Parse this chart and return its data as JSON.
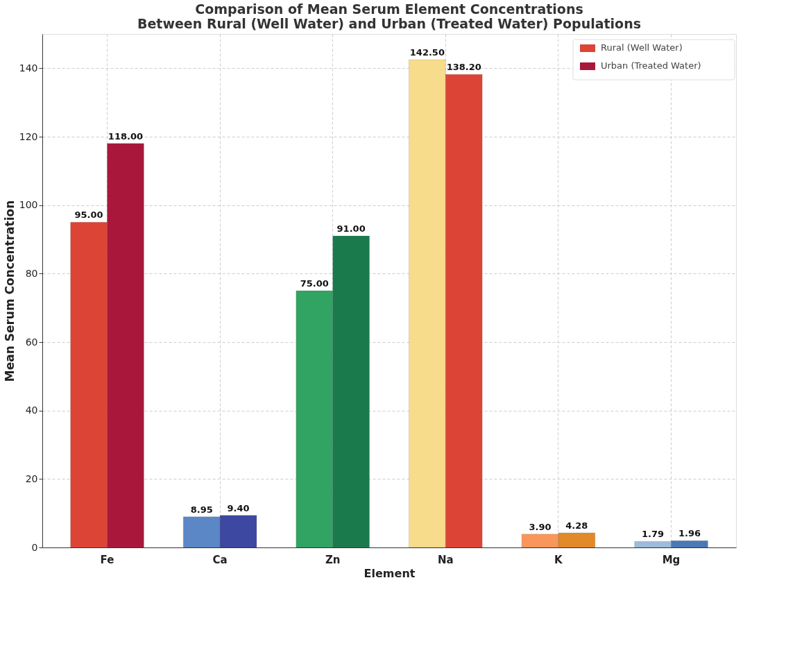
{
  "chart_data": {
    "type": "bar",
    "title": [
      "Comparison of Mean Serum Element Concentrations",
      "Between Rural (Well Water) and Urban (Treated Water) Populations"
    ],
    "xlabel": "Element",
    "ylabel": "Mean Serum Concentration",
    "categories": [
      "Fe",
      "Ca",
      "Zn",
      "Na",
      "K",
      "Mg"
    ],
    "series": [
      {
        "name": "Rural (Well Water)",
        "color": "#dc4535",
        "colors": [
          "#dc4535",
          "#5b87c6",
          "#31a362",
          "#f7dc8c",
          "#f9965c",
          "#9dbcdb"
        ],
        "values": [
          95.0,
          8.95,
          75.0,
          142.5,
          3.9,
          1.79
        ],
        "value_labels": [
          "95.00",
          "8.95",
          "75.00",
          "142.50",
          "3.90",
          "1.79"
        ]
      },
      {
        "name": "Urban (Treated Water)",
        "color": "#a9173a",
        "colors": [
          "#a9173a",
          "#3d48a1",
          "#1b7a4c",
          "#dc4535",
          "#e2892a",
          "#4a79b6"
        ],
        "values": [
          118.0,
          9.4,
          91.0,
          138.2,
          4.28,
          1.96
        ],
        "value_labels": [
          "118.00",
          "9.40",
          "91.00",
          "138.20",
          "4.28",
          "1.96"
        ]
      }
    ],
    "ylim": [
      0,
      150
    ],
    "yticks": [
      0,
      20,
      40,
      60,
      80,
      100,
      120,
      140
    ],
    "grid": true,
    "legend": "top right"
  }
}
